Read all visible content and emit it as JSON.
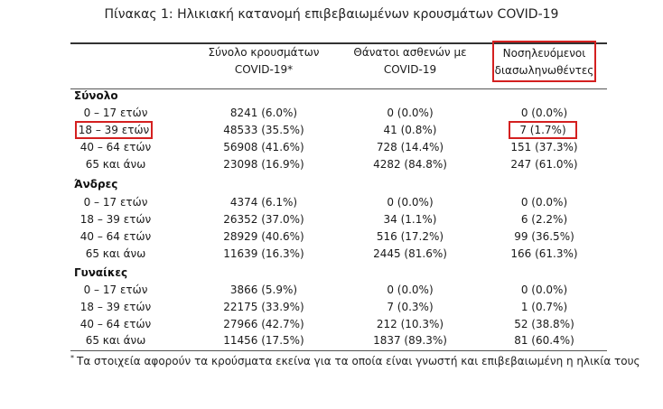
{
  "title": "Πίνακας 1: Ηλικιακή κατανομή επιβεβαιωμένων κρουσμάτων COVID-19",
  "headers": {
    "c1": [
      "Σύνολο κρουσμάτων",
      "COVID-19*"
    ],
    "c2": [
      "Θάνατοι ασθενών με",
      "COVID-19"
    ],
    "c3": [
      "Νοσηλευόμενοι",
      "διασωληνωθέντες"
    ]
  },
  "groups": [
    {
      "name": "Σύνολο",
      "rows": [
        {
          "label": "0 – 17 ετών",
          "cases": "8241 (6.0%)",
          "deaths": "0 (0.0%)",
          "icu": "0 (0.0%)"
        },
        {
          "label": "18 – 39 ετών",
          "cases": "48533 (35.5%)",
          "deaths": "41 (0.8%)",
          "icu": "7 (1.7%)"
        },
        {
          "label": "40 – 64 ετών",
          "cases": "56908 (41.6%)",
          "deaths": "728 (14.4%)",
          "icu": "151 (37.3%)"
        },
        {
          "label": "65 και άνω",
          "cases": "23098 (16.9%)",
          "deaths": "4282 (84.8%)",
          "icu": "247 (61.0%)"
        }
      ]
    },
    {
      "name": "Άνδρες",
      "rows": [
        {
          "label": "0 – 17 ετών",
          "cases": "4374 (6.1%)",
          "deaths": "0 (0.0%)",
          "icu": "0 (0.0%)"
        },
        {
          "label": "18 – 39 ετών",
          "cases": "26352 (37.0%)",
          "deaths": "34 (1.1%)",
          "icu": "6 (2.2%)"
        },
        {
          "label": "40 – 64 ετών",
          "cases": "28929 (40.6%)",
          "deaths": "516 (17.2%)",
          "icu": "99 (36.5%)"
        },
        {
          "label": "65 και άνω",
          "cases": "11639 (16.3%)",
          "deaths": "2445 (81.6%)",
          "icu": "166 (61.3%)"
        }
      ]
    },
    {
      "name": "Γυναίκες",
      "rows": [
        {
          "label": "0 – 17 ετών",
          "cases": "3866 (5.9%)",
          "deaths": "0 (0.0%)",
          "icu": "0 (0.0%)"
        },
        {
          "label": "18 – 39 ετών",
          "cases": "22175 (33.9%)",
          "deaths": "7 (0.3%)",
          "icu": "1 (0.7%)"
        },
        {
          "label": "40 – 64 ετών",
          "cases": "27966 (42.7%)",
          "deaths": "212 (10.3%)",
          "icu": "52 (38.8%)"
        },
        {
          "label": "65 και άνω",
          "cases": "11456 (17.5%)",
          "deaths": "1837 (89.3%)",
          "icu": "81 (60.4%)"
        }
      ]
    }
  ],
  "footnote": {
    "mark": "*",
    "text": "Τα στοιχεία αφορούν τα κρούσματα εκείνα για τα οποία είναι γνωστή και επιβεβαιωμένη η ηλικία τους"
  },
  "highlight_color": "#d42020"
}
